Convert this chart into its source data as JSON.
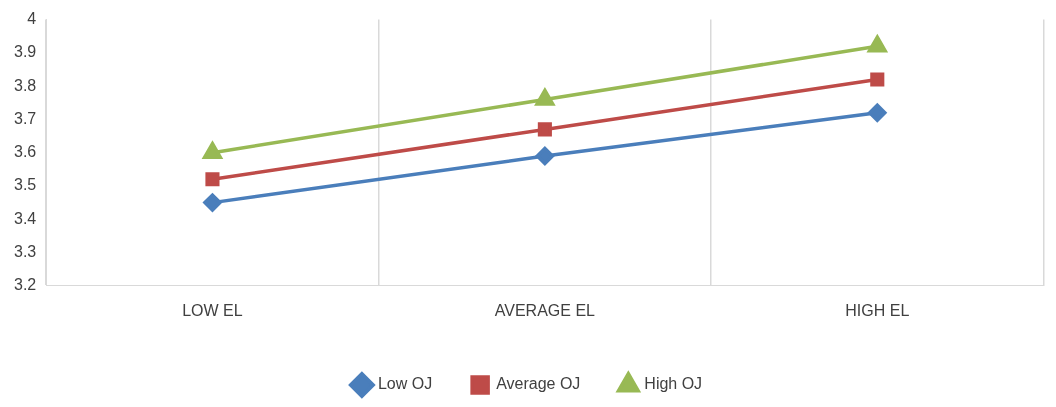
{
  "chart_data": {
    "type": "line",
    "categories": [
      "LOW EL",
      "AVERAGE EL",
      "HIGH EL"
    ],
    "series": [
      {
        "name": "Low OJ",
        "color": "#4a7ebb",
        "marker": "diamond",
        "values": [
          3.45,
          3.59,
          3.72
        ]
      },
      {
        "name": "Average OJ",
        "color": "#be4b48",
        "marker": "square",
        "values": [
          3.52,
          3.67,
          3.82
        ]
      },
      {
        "name": "High OJ",
        "color": "#98b954",
        "marker": "triangle",
        "values": [
          3.6,
          3.76,
          3.92
        ]
      }
    ],
    "ylim": [
      3.2,
      4
    ],
    "yticks": [
      3.2,
      3.3,
      3.4,
      3.5,
      3.6,
      3.7,
      3.8,
      3.9,
      4
    ],
    "grid": "x",
    "legend": "bottom",
    "line_style": "solid"
  }
}
